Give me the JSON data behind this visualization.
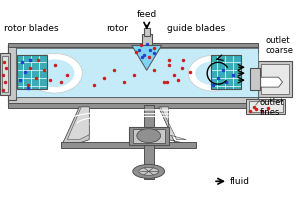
{
  "bg_color": "#ffffff",
  "light_blue": "#c5eaf8",
  "medium_blue": "#7dd4f5",
  "cyan_teal": "#3aacb8",
  "gray_dark": "#505050",
  "gray_mid": "#909090",
  "gray_light": "#c8c8c8",
  "gray_shell": "#b0b0b0",
  "arrow_color": "#000000",
  "red_dot": "#cc2020",
  "blue_dot": "#2244cc",
  "labels": {
    "feed": "feed",
    "rotor": "rotor",
    "rotor_blades": "rotor blades",
    "guide_blades": "guide blades",
    "outlet_coarse": "outlet\ncoarse",
    "outlet_fines": "outlet\nfines",
    "fluid": "fluid"
  }
}
